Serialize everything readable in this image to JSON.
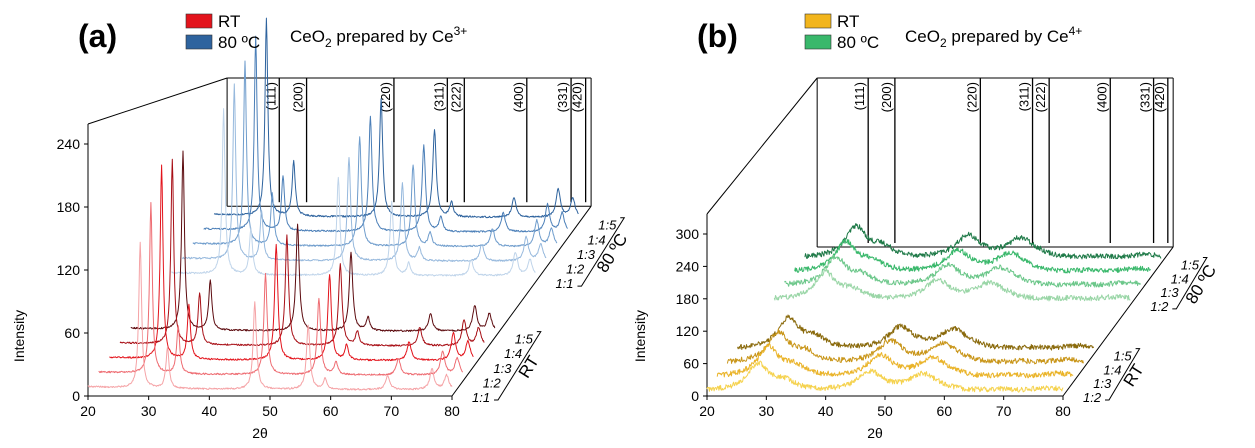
{
  "chart_data": [
    {
      "type": "line",
      "panel_label": "(a)",
      "title": "CeO2 prepared by Ce3+",
      "title_main": "CeO",
      "title_sub": "2",
      "title_rest": " prepared by Ce",
      "title_sup": "3+",
      "xlabel": "2θ",
      "ylabel": "Intensity",
      "xlim": [
        20,
        80
      ],
      "ylim": [
        0,
        240
      ],
      "x_ticks": [
        "20",
        "30",
        "40",
        "50",
        "60",
        "70",
        "80"
      ],
      "y_ticks": [
        "0",
        "60",
        "120",
        "180",
        "240"
      ],
      "legend": [
        {
          "label": "RT",
          "color": "#e3141c"
        },
        {
          "label": "80 ºC",
          "color": "#2e639e"
        }
      ],
      "groups": [
        {
          "label": "RT",
          "rows": [
            "1:1",
            "1:2",
            "1:3",
            "1:4",
            "1:5"
          ]
        },
        {
          "label": "80 ºC",
          "rows": [
            "1:1",
            "1:2",
            "1:3",
            "1:4",
            "1:5"
          ]
        }
      ],
      "peak_labels": [
        "(111)",
        "(200)",
        "(220)",
        "(311)",
        "(222)",
        "(400)",
        "(331)",
        "(420)"
      ],
      "peak_positions": [
        28.6,
        33.1,
        47.5,
        56.3,
        59.1,
        69.4,
        76.7,
        79.1
      ],
      "peak_widths": [
        0.28,
        0.3,
        0.32,
        0.34,
        0.34,
        0.4,
        0.42,
        0.44
      ],
      "peak_heights": [
        185,
        52,
        110,
        82,
        14,
        18,
        26,
        18
      ],
      "series": [
        {
          "group": "RT",
          "row": "1:1",
          "color": "#f5a3a6",
          "scale": 0.75
        },
        {
          "group": "RT",
          "row": "1:2",
          "color": "#ee6c72",
          "scale": 0.88
        },
        {
          "group": "RT",
          "row": "1:3",
          "color": "#e3141c",
          "scale": 1.0
        },
        {
          "group": "RT",
          "row": "1:4",
          "color": "#a80f16",
          "scale": 0.95
        },
        {
          "group": "RT",
          "row": "1:5",
          "color": "#5c0a0e",
          "scale": 0.92
        },
        {
          "group": "80 ºC",
          "row": "1:1",
          "color": "#bfd4ea",
          "scale": 0.85
        },
        {
          "group": "80 ºC",
          "row": "1:2",
          "color": "#97b9dd",
          "scale": 0.9
        },
        {
          "group": "80 ºC",
          "row": "1:3",
          "color": "#6e9ccc",
          "scale": 0.95
        },
        {
          "group": "80 ºC",
          "row": "1:4",
          "color": "#4b7fb8",
          "scale": 1.0
        },
        {
          "group": "80 ºC",
          "row": "1:5",
          "color": "#2e639e",
          "scale": 1.02
        }
      ]
    },
    {
      "type": "line",
      "panel_label": "(b)",
      "title": "CeO2 prepared by Ce4+",
      "title_main": "CeO",
      "title_sub": "2",
      "title_rest": " prepared by Ce",
      "title_sup": "4+",
      "xlabel": "2θ",
      "ylabel": "Intensity",
      "xlim": [
        20,
        80
      ],
      "ylim": [
        0,
        300
      ],
      "x_ticks": [
        "20",
        "30",
        "40",
        "50",
        "60",
        "70",
        "80"
      ],
      "y_ticks": [
        "0",
        "60",
        "120",
        "180",
        "240",
        "300"
      ],
      "legend": [
        {
          "label": "RT",
          "color": "#f2b51c"
        },
        {
          "label": "80 ºC",
          "color": "#39b86b"
        }
      ],
      "groups": [
        {
          "label": "RT",
          "rows": [
            "1:2",
            "1:3",
            "1:4",
            "1:5"
          ]
        },
        {
          "label": "80 ºC",
          "rows": [
            "1:2",
            "1:3",
            "1:4",
            "1:5"
          ]
        }
      ],
      "peak_labels": [
        "(111)",
        "(200)",
        "(220)",
        "(311)",
        "(222)",
        "(400)",
        "(331)",
        "(420)"
      ],
      "peak_positions": [
        28.6,
        33.1,
        47.5,
        56.3,
        59.1,
        69.4,
        76.7,
        79.1
      ],
      "peak_widths": [
        2.2,
        2.2,
        2.6,
        2.8,
        2.8,
        3.0,
        3.0,
        3.0
      ],
      "peak_heights": [
        55,
        18,
        40,
        34,
        4,
        4,
        6,
        4
      ],
      "series": [
        {
          "group": "RT",
          "row": "1:2",
          "color": "#f5d24e",
          "scale": 0.9
        },
        {
          "group": "RT",
          "row": "1:3",
          "color": "#eab42a",
          "scale": 1.0
        },
        {
          "group": "RT",
          "row": "1:4",
          "color": "#c9961a",
          "scale": 1.02
        },
        {
          "group": "RT",
          "row": "1:5",
          "color": "#8a6a0c",
          "scale": 1.05
        },
        {
          "group": "80 ºC",
          "row": "1:2",
          "color": "#9ad6a7",
          "scale": 0.9
        },
        {
          "group": "80 ºC",
          "row": "1:3",
          "color": "#6cc78a",
          "scale": 0.95
        },
        {
          "group": "80 ºC",
          "row": "1:4",
          "color": "#39b86b",
          "scale": 1.0
        },
        {
          "group": "80 ºC",
          "row": "1:5",
          "color": "#1f7a48",
          "scale": 1.05
        }
      ]
    }
  ]
}
